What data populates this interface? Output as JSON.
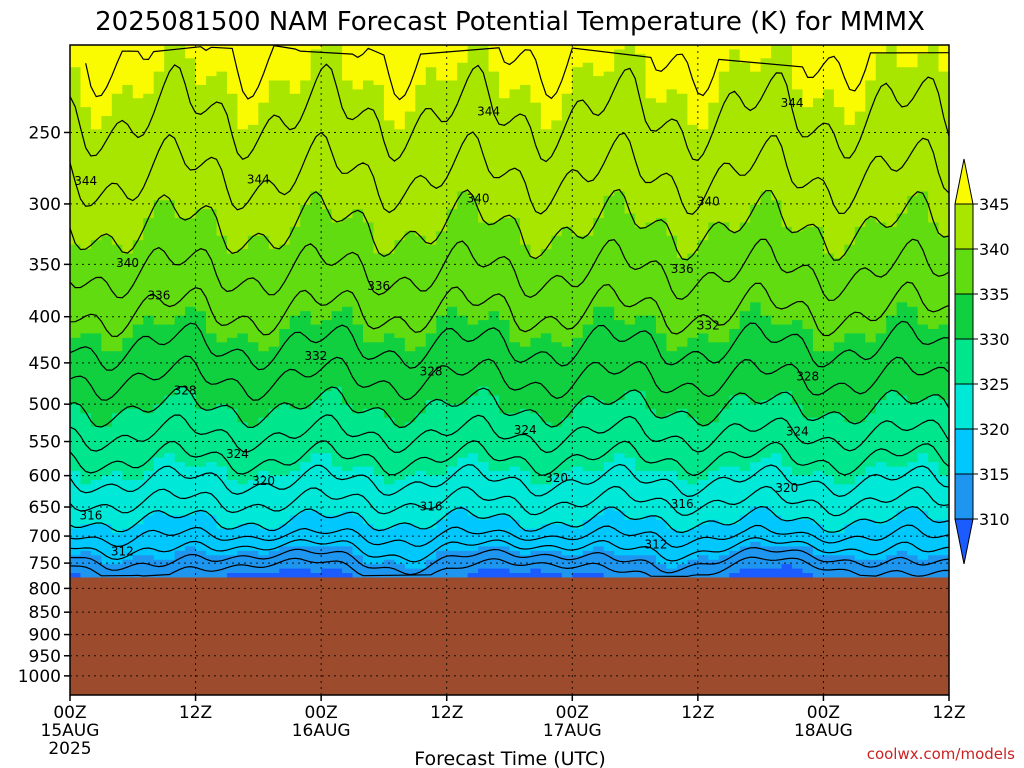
{
  "chart_data": {
    "type": "contour",
    "title": "2025081500 NAM Forecast Potential Temperature (K) for MMMX",
    "xlabel": "Forecast Time (UTC)",
    "ylabel": "",
    "x_ticks": [
      {
        "hour": 0,
        "line1": "00Z",
        "line2": "15AUG",
        "line3": "2025"
      },
      {
        "hour": 12,
        "line1": "12Z",
        "line2": "",
        "line3": ""
      },
      {
        "hour": 24,
        "line1": "00Z",
        "line2": "16AUG",
        "line3": ""
      },
      {
        "hour": 36,
        "line1": "12Z",
        "line2": "",
        "line3": ""
      },
      {
        "hour": 48,
        "line1": "00Z",
        "line2": "17AUG",
        "line3": ""
      },
      {
        "hour": 60,
        "line1": "12Z",
        "line2": "",
        "line3": ""
      },
      {
        "hour": 72,
        "line1": "00Z",
        "line2": "18AUG",
        "line3": ""
      },
      {
        "hour": 84,
        "line1": "12Z",
        "line2": "",
        "line3": ""
      }
    ],
    "xlim": [
      0,
      84
    ],
    "y_ticks": [
      250,
      300,
      350,
      400,
      450,
      500,
      550,
      600,
      650,
      700,
      750,
      800,
      850,
      900,
      950,
      1000
    ],
    "ylim": [
      200,
      1050
    ],
    "y_scale": "log",
    "ground_pressure": 778,
    "grid": true,
    "colorbar": {
      "levels": [
        310,
        315,
        320,
        325,
        330,
        335,
        340,
        345
      ],
      "labels": [
        "310",
        "315",
        "320",
        "325",
        "330",
        "335",
        "340",
        "345"
      ],
      "colors": [
        "#1a5cff",
        "#1e96f0",
        "#00c8ff",
        "#00e8d8",
        "#00e68c",
        "#10d040",
        "#60dc10",
        "#a8e600",
        "#fafa00"
      ],
      "placement": "right"
    },
    "ground_color": "#9c4c2c",
    "contour_labels": [
      {
        "hour": 1.5,
        "p": 283,
        "text": "344"
      },
      {
        "hour": 18,
        "p": 282,
        "text": "344"
      },
      {
        "hour": 40,
        "p": 237,
        "text": "344"
      },
      {
        "hour": 69,
        "p": 232,
        "text": "344"
      },
      {
        "hour": 39,
        "p": 296,
        "text": "340"
      },
      {
        "hour": 61,
        "p": 298,
        "text": "340"
      },
      {
        "hour": 5.5,
        "p": 349,
        "text": "340"
      },
      {
        "hour": 8.5,
        "p": 379,
        "text": "336"
      },
      {
        "hour": 29.5,
        "p": 370,
        "text": "336"
      },
      {
        "hour": 58.5,
        "p": 354,
        "text": "336"
      },
      {
        "hour": 23.5,
        "p": 442,
        "text": "332"
      },
      {
        "hour": 61,
        "p": 409,
        "text": "332"
      },
      {
        "hour": 11,
        "p": 483,
        "text": "328"
      },
      {
        "hour": 34.5,
        "p": 460,
        "text": "328"
      },
      {
        "hour": 70.5,
        "p": 466,
        "text": "328"
      },
      {
        "hour": 16,
        "p": 568,
        "text": "324"
      },
      {
        "hour": 43.5,
        "p": 534,
        "text": "324"
      },
      {
        "hour": 69.5,
        "p": 536,
        "text": "324"
      },
      {
        "hour": 18.5,
        "p": 608,
        "text": "320"
      },
      {
        "hour": 46.5,
        "p": 604,
        "text": "320"
      },
      {
        "hour": 68.5,
        "p": 619,
        "text": "320"
      },
      {
        "hour": 2,
        "p": 664,
        "text": "316"
      },
      {
        "hour": 34.5,
        "p": 649,
        "text": "316"
      },
      {
        "hour": 58.5,
        "p": 645,
        "text": "316"
      },
      {
        "hour": 5,
        "p": 728,
        "text": "312"
      },
      {
        "hour": 56,
        "p": 715,
        "text": "312"
      }
    ]
  },
  "credit": "coolwx.com/models"
}
